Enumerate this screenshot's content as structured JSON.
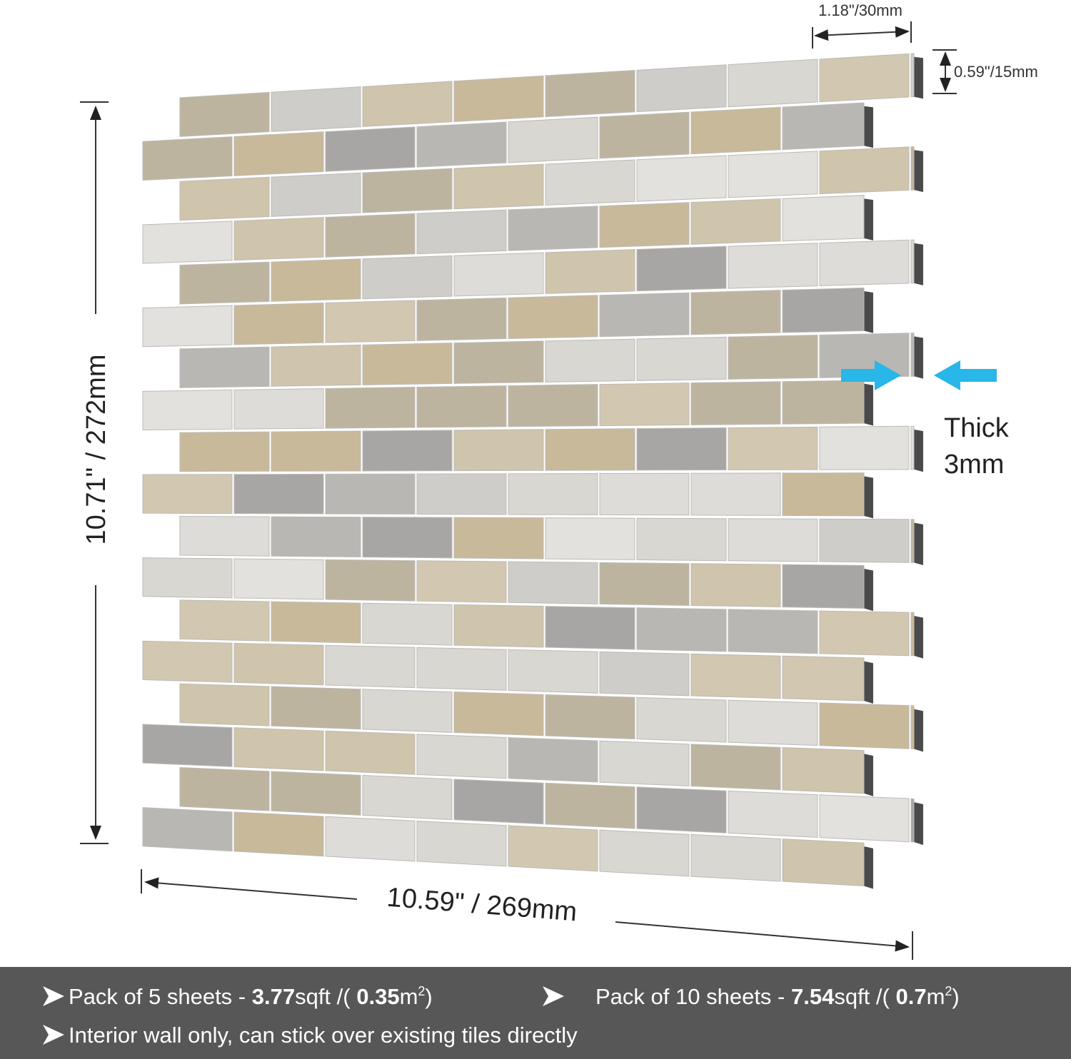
{
  "dimensions": {
    "tile_width": "1.18\"/30mm",
    "tile_height": "0.59\"/15mm",
    "sheet_height": "10.71\" / 272mm",
    "sheet_width": "10.59\" / 269mm",
    "thickness_label": "Thick",
    "thickness_value": "3mm"
  },
  "footer": {
    "lines": [
      [
        {
          "text": "Pack of 5 sheets - "
        },
        {
          "text": "3.77",
          "bold": true
        },
        {
          "text": "sqft /( "
        },
        {
          "text": "0.35",
          "bold": true
        },
        {
          "text": "m"
        },
        {
          "text": "2",
          "sup": true
        },
        {
          "text": ")"
        }
      ],
      [
        {
          "text": "Pack of 10 sheets - "
        },
        {
          "text": "7.54",
          "bold": true
        },
        {
          "text": "sqft /( "
        },
        {
          "text": "0.7",
          "bold": true
        },
        {
          "text": "m"
        },
        {
          "text": "2",
          "sup": true
        },
        {
          "text": ")"
        }
      ],
      [
        {
          "text": "Interior wall only, can stick over existing tiles directly"
        }
      ]
    ]
  }
}
